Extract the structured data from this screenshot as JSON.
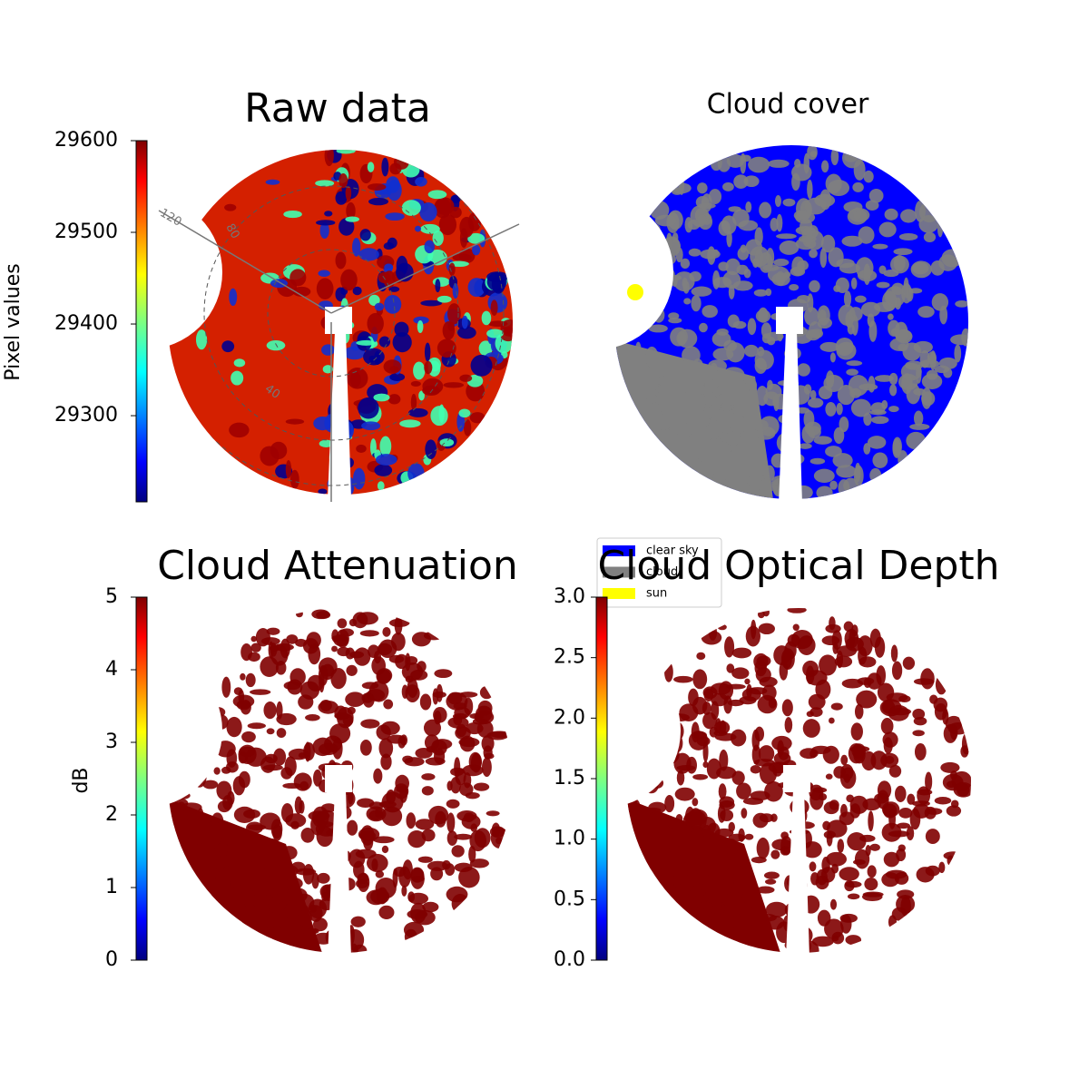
{
  "chart_data": [
    {
      "type": "image",
      "title": "Raw data",
      "colormap": "jet",
      "colorbar": {
        "label": "Pixel values",
        "lim": [
          29206,
          29600
        ],
        "ticks": [
          29300,
          29400,
          29500,
          29600
        ]
      },
      "annotations": [
        "120",
        "80",
        "40"
      ]
    },
    {
      "type": "image",
      "title": "Cloud cover",
      "legend": [
        {
          "name": "clear sky",
          "color": "#0000ff"
        },
        {
          "name": "cloud",
          "color": "#808080"
        },
        {
          "name": "sun",
          "color": "#ffff00"
        }
      ]
    },
    {
      "type": "image",
      "title": "Cloud Attenuation",
      "colormap": "jet",
      "colorbar": {
        "label": "dB",
        "lim": [
          0,
          5
        ],
        "ticks": [
          0,
          1,
          2,
          3,
          4,
          5
        ]
      }
    },
    {
      "type": "image",
      "title": "Cloud Optical Depth",
      "colormap": "jet",
      "colorbar": {
        "lim": [
          0,
          3
        ],
        "ticks": [
          {
            "value": 0,
            "label": "0.0"
          },
          0.5,
          {
            "value": 1,
            "label": "1.0"
          },
          1.5,
          {
            "value": 2,
            "label": "2.0"
          },
          2.5,
          {
            "value": 3,
            "label": "3.0"
          }
        ]
      }
    }
  ]
}
